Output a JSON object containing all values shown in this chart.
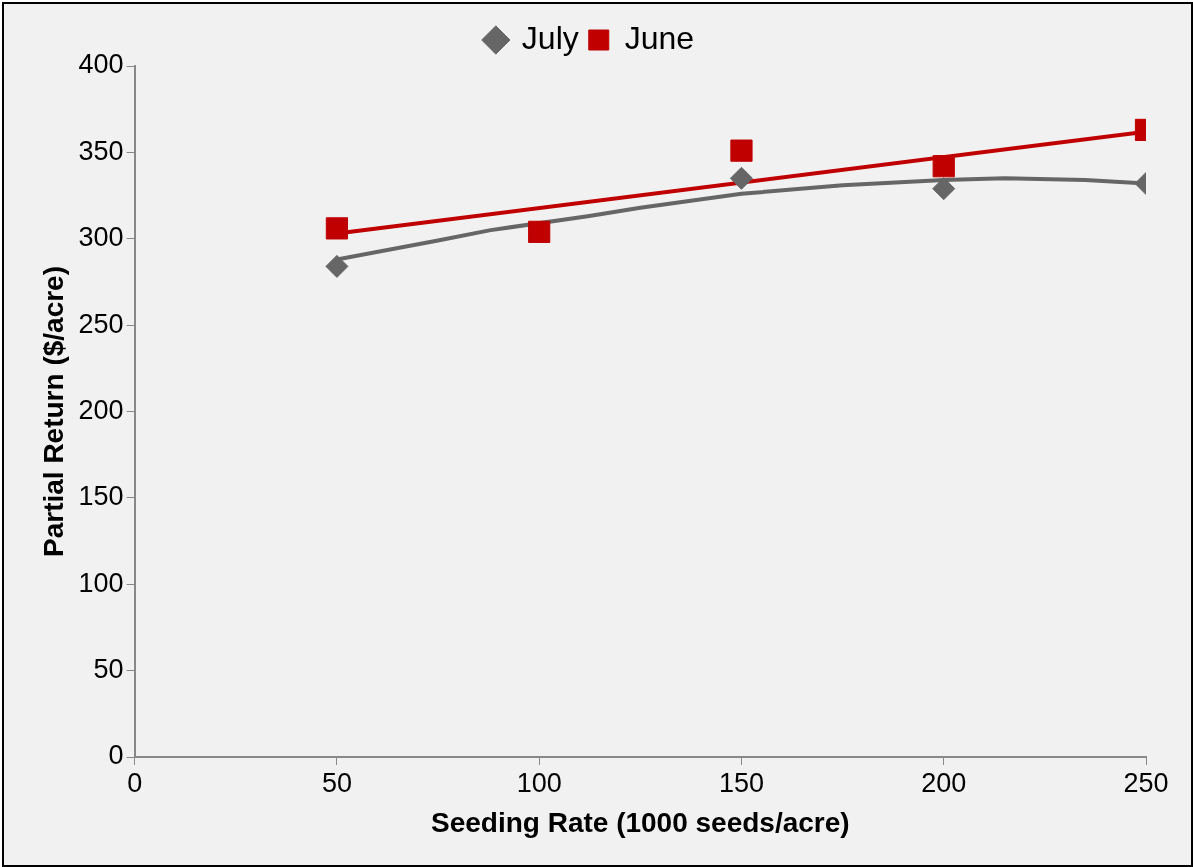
{
  "chart_data": {
    "type": "scatter",
    "xlabel": "Seeding Rate (1000 seeds/acre)",
    "ylabel": "Partial Return ($/acre)",
    "x": [
      50,
      100,
      150,
      200,
      250
    ],
    "series": [
      {
        "name": "July",
        "color": "#666666",
        "marker": "diamond",
        "values": [
          284,
          null,
          335,
          329,
          332
        ]
      },
      {
        "name": "June",
        "color": "#c00000",
        "marker": "square",
        "values": [
          306,
          304,
          351,
          342,
          363
        ]
      },
      {
        "type": "line",
        "color": "#666666",
        "marker": "none",
        "x": [
          50,
          75,
          88,
          112,
          125,
          150,
          175,
          200,
          215,
          235,
          250
        ],
        "values": [
          288,
          299,
          305,
          313,
          318,
          326,
          331,
          334,
          335,
          334,
          332
        ]
      },
      {
        "type": "line",
        "color": "#c00000",
        "marker": "none",
        "x": [
          50,
          250
        ],
        "values": [
          303,
          362
        ]
      }
    ],
    "xlim": [
      0,
      250
    ],
    "xticks": [
      0,
      50,
      100,
      150,
      200,
      250
    ],
    "ylim": [
      0,
      400
    ],
    "yticks": [
      0,
      50,
      100,
      150,
      200,
      250,
      300,
      350,
      400
    ],
    "grid": false,
    "legend": "top"
  }
}
